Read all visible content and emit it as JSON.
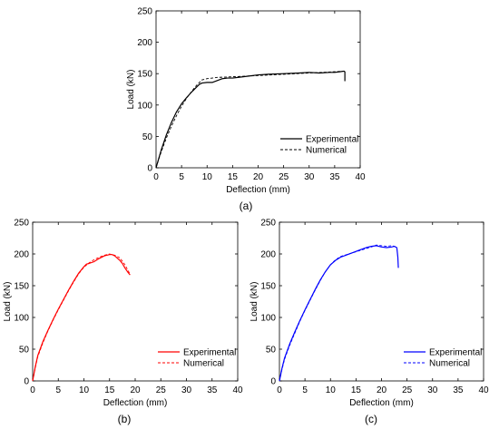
{
  "chart_data": [
    {
      "type": "line",
      "caption": "(a)",
      "xlabel": "Deflection (mm)",
      "ylabel": "Load (kN)",
      "xlim": [
        0,
        40
      ],
      "ylim": [
        0,
        250
      ],
      "xticks": [
        0,
        5,
        10,
        15,
        20,
        25,
        30,
        35,
        40
      ],
      "yticks": [
        0,
        50,
        100,
        150,
        200,
        250
      ],
      "grid": false,
      "legend_position": "bottom-right",
      "series": [
        {
          "name": "Experimental",
          "color": "#000000",
          "dash": "solid",
          "x": [
            0,
            0.5,
            1,
            2,
            3,
            4,
            5,
            6,
            7,
            8,
            8.5,
            9,
            10,
            11,
            12,
            13,
            14,
            15,
            16,
            18,
            20,
            22,
            25,
            28,
            30,
            32,
            34,
            35,
            36,
            36.8,
            37,
            37
          ],
          "y": [
            0,
            14,
            28,
            52,
            72,
            89,
            102,
            112,
            121,
            129,
            133,
            135,
            136,
            136,
            139,
            142,
            143,
            143,
            144,
            146,
            148,
            149,
            150,
            151,
            152,
            151,
            152,
            152,
            153,
            154,
            153,
            138
          ]
        },
        {
          "name": "Numerical",
          "color": "#000000",
          "dash": "dashed",
          "x": [
            0,
            0.5,
            1,
            2,
            3,
            4,
            5,
            6,
            7,
            8,
            9,
            10,
            12,
            15,
            20,
            25,
            30,
            35,
            37
          ],
          "y": [
            0,
            13,
            25,
            47,
            66,
            83,
            98,
            111,
            122,
            132,
            140,
            142,
            144,
            145,
            147,
            149,
            151,
            153,
            154
          ]
        }
      ]
    },
    {
      "type": "line",
      "caption": "(b)",
      "xlabel": "Deflection (mm)",
      "ylabel": "Load (kN)",
      "xlim": [
        0,
        40
      ],
      "ylim": [
        0,
        250
      ],
      "xticks": [
        0,
        5,
        10,
        15,
        20,
        25,
        30,
        35,
        40
      ],
      "yticks": [
        0,
        50,
        100,
        150,
        200,
        250
      ],
      "grid": false,
      "legend_position": "bottom-right",
      "series": [
        {
          "name": "Experimental",
          "color": "#ff0000",
          "dash": "solid",
          "x": [
            0,
            0.5,
            1,
            2,
            3,
            4,
            5,
            6,
            7,
            8,
            9,
            10,
            10.5,
            11,
            12,
            13,
            14,
            15,
            15.5,
            16,
            17,
            17.5,
            18,
            18.5,
            19
          ],
          "y": [
            0,
            22,
            40,
            62,
            80,
            97,
            113,
            128,
            143,
            157,
            170,
            180,
            184,
            185,
            188,
            193,
            197,
            199,
            199,
            197,
            190,
            185,
            178,
            172,
            167
          ]
        },
        {
          "name": "Numerical",
          "color": "#ff0000",
          "dash": "dashed",
          "x": [
            0,
            0.5,
            1,
            2,
            3,
            4,
            5,
            6,
            7,
            8,
            9,
            10,
            11,
            12,
            13,
            14,
            15,
            16,
            17,
            18,
            19
          ],
          "y": [
            0,
            20,
            38,
            60,
            79,
            96,
            112,
            127,
            142,
            156,
            169,
            179,
            186,
            191,
            195,
            198,
            200,
            198,
            194,
            183,
            168
          ]
        }
      ]
    },
    {
      "type": "line",
      "caption": "(c)",
      "xlabel": "Deflection (mm)",
      "ylabel": "Load (kN)",
      "xlim": [
        0,
        40
      ],
      "ylim": [
        0,
        250
      ],
      "xticks": [
        0,
        5,
        10,
        15,
        20,
        25,
        30,
        35,
        40
      ],
      "yticks": [
        0,
        50,
        100,
        150,
        200,
        250
      ],
      "grid": false,
      "legend_position": "bottom-right",
      "series": [
        {
          "name": "Experimental",
          "color": "#0000ff",
          "dash": "solid",
          "x": [
            0,
            0.5,
            1,
            2,
            3,
            4,
            5,
            6,
            7,
            8,
            9,
            10,
            11,
            12,
            13,
            14,
            15,
            16,
            17,
            18,
            19,
            20,
            21,
            22,
            22.5,
            23,
            23.2,
            23.3
          ],
          "y": [
            0,
            20,
            36,
            58,
            77,
            95,
            112,
            128,
            144,
            159,
            172,
            183,
            190,
            195,
            198,
            201,
            204,
            207,
            210,
            212,
            213,
            211,
            210,
            211,
            212,
            210,
            195,
            178
          ]
        },
        {
          "name": "Numerical",
          "color": "#0000ff",
          "dash": "dashed",
          "x": [
            0,
            0.5,
            1,
            2,
            3,
            4,
            5,
            6,
            7,
            8,
            9,
            10,
            11,
            12,
            14,
            16,
            18,
            19,
            20,
            21,
            22,
            23
          ],
          "y": [
            0,
            18,
            34,
            56,
            75,
            94,
            111,
            127,
            143,
            158,
            172,
            183,
            191,
            196,
            201,
            206,
            211,
            214,
            213,
            212,
            213,
            211
          ]
        }
      ]
    }
  ]
}
